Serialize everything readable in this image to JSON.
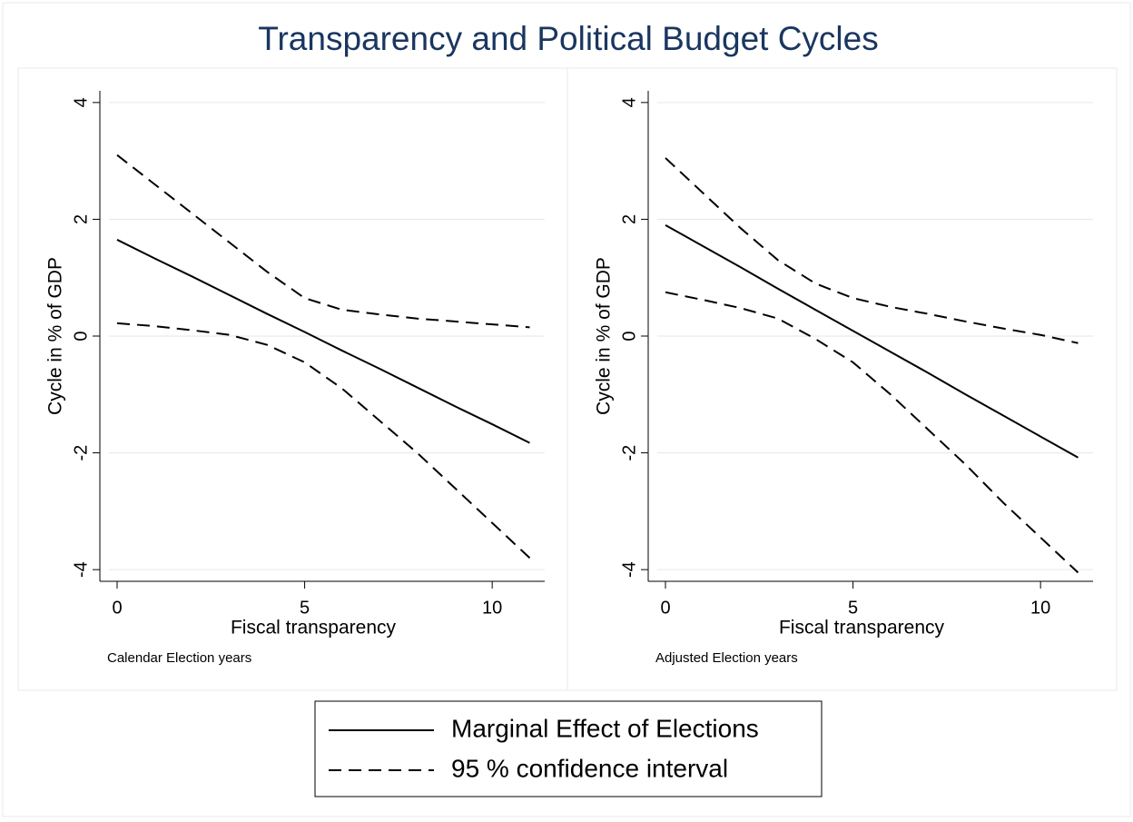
{
  "title": "Transparency and Political Budget Cycles",
  "chart_data": [
    {
      "type": "line",
      "note": "Calendar Election years",
      "xlabel": "Fiscal transparency",
      "ylabel": "Cycle in % of GDP",
      "x": [
        0,
        1,
        2,
        3,
        4,
        5,
        6,
        7,
        8,
        9,
        10,
        11
      ],
      "xlim": [
        -0.46,
        11.4
      ],
      "xticks": [
        0,
        5,
        10
      ],
      "ylim": [
        -4.2,
        4.2
      ],
      "yticks": [
        -4,
        -2,
        0,
        2,
        4
      ],
      "grid": true,
      "series": [
        {
          "name": "Marginal Effect of Elections",
          "color": "#000000",
          "dash": false,
          "values": [
            1.65,
            1.33,
            1.02,
            0.7,
            0.38,
            0.07,
            -0.25,
            -0.56,
            -0.88,
            -1.2,
            -1.51,
            -1.83
          ]
        },
        {
          "name": "95 % confidence interval",
          "color": "#000000",
          "dash": true,
          "upper": [
            3.1,
            2.6,
            2.1,
            1.6,
            1.1,
            0.65,
            0.45,
            0.37,
            0.3,
            0.25,
            0.2,
            0.15
          ],
          "lower": [
            0.22,
            0.17,
            0.1,
            0.02,
            -0.15,
            -0.45,
            -0.9,
            -1.45,
            -2.0,
            -2.6,
            -3.2,
            -3.8
          ]
        }
      ]
    },
    {
      "type": "line",
      "note": "Adjusted Election years",
      "xlabel": "Fiscal transparency",
      "ylabel": "Cycle in % of GDP",
      "x": [
        0,
        1,
        2,
        3,
        4,
        5,
        6,
        7,
        8,
        9,
        10,
        11
      ],
      "xlim": [
        -0.46,
        11.4
      ],
      "xticks": [
        0,
        5,
        10
      ],
      "ylim": [
        -4.2,
        4.2
      ],
      "yticks": [
        -4,
        -2,
        0,
        2,
        4
      ],
      "grid": true,
      "series": [
        {
          "name": "Marginal Effect of Elections",
          "color": "#000000",
          "dash": false,
          "values": [
            1.9,
            1.54,
            1.18,
            0.81,
            0.45,
            0.09,
            -0.27,
            -0.63,
            -1.0,
            -1.36,
            -1.72,
            -2.08
          ]
        },
        {
          "name": "95 % confidence interval",
          "color": "#000000",
          "dash": true,
          "upper": [
            3.05,
            2.45,
            1.85,
            1.3,
            0.9,
            0.65,
            0.5,
            0.38,
            0.25,
            0.13,
            0.02,
            -0.12
          ],
          "lower": [
            0.75,
            0.62,
            0.48,
            0.3,
            -0.05,
            -0.45,
            -1.0,
            -1.6,
            -2.2,
            -2.85,
            -3.45,
            -4.05
          ]
        }
      ]
    }
  ]
}
